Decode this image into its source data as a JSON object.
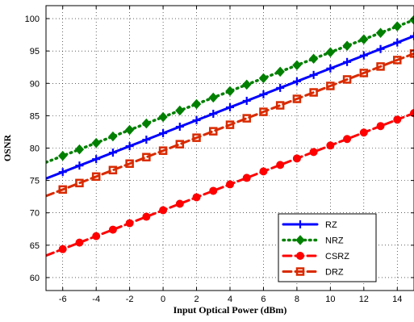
{
  "chart_data": {
    "type": "line",
    "title": "",
    "xlabel": "Input Optical Power (dBm)",
    "ylabel": "OSNR",
    "xlim": [
      -7,
      15
    ],
    "ylim": [
      58,
      102
    ],
    "xticks": [
      -6,
      -4,
      -2,
      0,
      2,
      4,
      6,
      8,
      10,
      12,
      14
    ],
    "yticks": [
      60,
      65,
      70,
      75,
      80,
      85,
      90,
      95,
      100
    ],
    "grid": "dotted",
    "legend_position": "bottom-right",
    "series": [
      {
        "name": "RZ",
        "color": "#0000ff",
        "line_style": "solid",
        "marker": "plus",
        "x_start": -7,
        "x_end": 15,
        "y_start": 75.3,
        "y_end": 97.3,
        "marker_x": [
          -6,
          -5,
          -4,
          -3,
          -2,
          -1,
          0,
          1,
          2,
          3,
          4,
          5,
          6,
          7,
          8,
          9,
          10,
          11,
          12,
          13,
          14,
          15
        ]
      },
      {
        "name": "NRZ",
        "color": "#008000",
        "line_style": "dotted",
        "marker": "diamond",
        "x_start": -7,
        "x_end": 15,
        "y_start": 77.8,
        "y_end": 99.8,
        "marker_x": [
          -6,
          -5,
          -4,
          -3,
          -2,
          -1,
          0,
          1,
          2,
          3,
          4,
          5,
          6,
          7,
          8,
          9,
          10,
          11,
          12,
          13,
          14,
          15
        ]
      },
      {
        "name": "CSRZ",
        "color": "#ff0000",
        "line_style": "dashed",
        "marker": "circle",
        "x_start": -7,
        "x_end": 15,
        "y_start": 63.4,
        "y_end": 85.4,
        "marker_x": [
          -6,
          -5,
          -4,
          -3,
          -2,
          -1,
          0,
          1,
          2,
          3,
          4,
          5,
          6,
          7,
          8,
          9,
          10,
          11,
          12,
          13,
          14,
          15
        ]
      },
      {
        "name": "DRZ",
        "color": "#d92a00",
        "line_style": "dashed",
        "marker": "square",
        "x_start": -7,
        "x_end": 15,
        "y_start": 72.6,
        "y_end": 94.6,
        "marker_x": [
          -6,
          -5,
          -4,
          -3,
          -2,
          -1,
          0,
          1,
          2,
          3,
          4,
          5,
          6,
          7,
          8,
          9,
          10,
          11,
          12,
          13,
          14,
          15
        ]
      }
    ]
  }
}
